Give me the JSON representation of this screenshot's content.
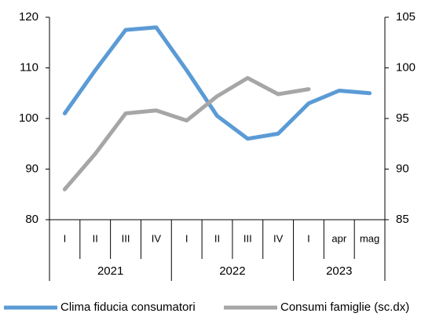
{
  "chart_data": {
    "type": "line",
    "groups": [
      {
        "label": "2021",
        "categories": [
          "I",
          "II",
          "III",
          "IV"
        ]
      },
      {
        "label": "2022",
        "categories": [
          "I",
          "II",
          "III",
          "IV"
        ]
      },
      {
        "label": "2023",
        "categories": [
          "I",
          "apr",
          "mag"
        ]
      }
    ],
    "series": [
      {
        "name": "Clima fiducia consumatori",
        "color": "#5b9bd5",
        "axis": "y",
        "values": [
          101,
          109.5,
          117.5,
          118,
          109.5,
          100.5,
          96,
          97,
          103,
          105.5,
          105
        ]
      },
      {
        "name": "Consumi famiglie (sc.dx)",
        "color": "#a6a6a6",
        "axis": "y2",
        "values": [
          88,
          91.5,
          95.5,
          95.8,
          94.8,
          97.2,
          99,
          97.4,
          97.9,
          null,
          null
        ]
      }
    ],
    "ylim": [
      80,
      120
    ],
    "yticks": [
      80,
      90,
      100,
      110,
      120
    ],
    "y2lim": [
      85,
      105
    ],
    "y2ticks": [
      85,
      90,
      95,
      100,
      105
    ],
    "legend": "bottom"
  }
}
